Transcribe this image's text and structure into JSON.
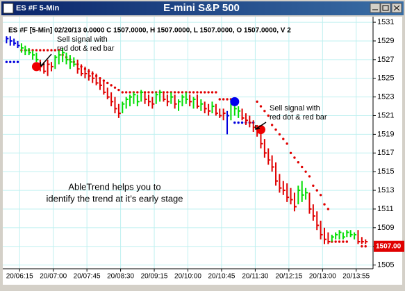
{
  "window": {
    "caption": "ES #F 5-Min",
    "title": "E-mini S&P 500"
  },
  "chart_data": {
    "type": "ohlc",
    "header": "ES #F [5-Min] 02/20/13  0.0000 C 1507.0000, H 1507.0000, L 1507.0000, O 1507.0000, V 2",
    "colors": {
      "up": "#00dd00",
      "down": "#e00000",
      "neutral": "#0000dd"
    },
    "high": [
      1529.5,
      1529.5,
      1529.25,
      1529,
      1528.75,
      1528.5,
      1528.25,
      1528,
      1527.75,
      1527,
      1526.75,
      1527,
      1526.75,
      1527.5,
      1528,
      1528.25,
      1527.75,
      1527.5,
      1527.25,
      1527,
      1526.5,
      1526.25,
      1526,
      1525.75,
      1525.5,
      1525,
      1524.75,
      1524,
      1523.5,
      1523,
      1522.25,
      1522.5,
      1523,
      1523.25,
      1523.5,
      1523.25,
      1523.75,
      1523.5,
      1523.25,
      1523,
      1523.5,
      1523.75,
      1523.5,
      1523.25,
      1523.5,
      1523.25,
      1522.75,
      1523.25,
      1523.5,
      1523.25,
      1523,
      1523.25,
      1522.75,
      1522.5,
      1522.25,
      1522.5,
      1522.25,
      1521.75,
      1521.75,
      1521.5,
      1522.75,
      1522.5,
      1522,
      1521.75,
      1521.25,
      1521,
      1520.5,
      1520,
      1519.5,
      1518.5,
      1517.5,
      1516.75,
      1516,
      1514.75,
      1514,
      1513.75,
      1513.25,
      1512.75,
      1513.5,
      1514,
      1513.25,
      1512.75,
      1511.5,
      1510.75,
      1509.75,
      1509,
      1508.5,
      1508.25,
      1508.5,
      1508.75,
      1508.5,
      1508.75,
      1508.75,
      1508.5,
      1508.75,
      1508,
      1507.75
    ],
    "low": [
      1528.75,
      1528.5,
      1528.5,
      1528.25,
      1527.75,
      1527.5,
      1527.5,
      1527,
      1526.75,
      1525.75,
      1525.5,
      1525.25,
      1525.75,
      1526,
      1526.5,
      1526.75,
      1526.5,
      1526,
      1526.25,
      1525.5,
      1525.25,
      1525,
      1524.75,
      1524.5,
      1524.25,
      1523.75,
      1523.25,
      1522.75,
      1522,
      1521.25,
      1520.75,
      1521.25,
      1521.75,
      1522,
      1522.25,
      1522,
      1522.5,
      1522.25,
      1522,
      1521.75,
      1522.25,
      1522.5,
      1522.5,
      1522,
      1522.25,
      1521.75,
      1521.5,
      1522,
      1522.25,
      1522,
      1521.75,
      1521.75,
      1521.5,
      1521.25,
      1521,
      1521.25,
      1521,
      1520.75,
      1520.5,
      1519,
      1520.5,
      1521,
      1520.75,
      1520.5,
      1520,
      1519.75,
      1519.25,
      1518.75,
      1517.5,
      1516.5,
      1515.75,
      1515,
      1513.5,
      1512.75,
      1512.5,
      1511.75,
      1511.5,
      1510.75,
      1511.5,
      1511.75,
      1512,
      1510.5,
      1509.75,
      1508.75,
      1507.75,
      1507.25,
      1507.25,
      1507.5,
      1507.75,
      1507.75,
      1507.75,
      1508,
      1508,
      1507.75,
      1507.25,
      1507.25,
      1507.25
    ],
    "close": [
      1529.25,
      1529,
      1528.75,
      1528.5,
      1528.25,
      1528,
      1527.75,
      1527.5,
      1527,
      1526.25,
      1525.75,
      1526.5,
      1526.25,
      1527.25,
      1527.5,
      1527.75,
      1527,
      1526.75,
      1526.5,
      1526,
      1525.5,
      1525.5,
      1525.25,
      1525,
      1524.5,
      1524.25,
      1523.5,
      1523,
      1522.5,
      1521.75,
      1521.25,
      1522.25,
      1522.75,
      1523,
      1523.25,
      1522.5,
      1523.5,
      1522.75,
      1522.5,
      1522.25,
      1523.25,
      1523.5,
      1522.75,
      1522.5,
      1523,
      1522.25,
      1522.5,
      1523,
      1522.75,
      1522.5,
      1522.75,
      1522,
      1522.25,
      1521.75,
      1521.5,
      1522,
      1521.25,
      1521,
      1521.25,
      1521,
      1522.25,
      1521.75,
      1521.5,
      1520.75,
      1520.5,
      1520.25,
      1519.75,
      1519.25,
      1518,
      1517,
      1516.25,
      1515.5,
      1514,
      1513.25,
      1513,
      1512.25,
      1512,
      1511.25,
      1513,
      1512.5,
      1512.75,
      1511,
      1510.25,
      1509.25,
      1508.25,
      1507.75,
      1507.5,
      1508,
      1508.25,
      1508.5,
      1508,
      1508.5,
      1508.25,
      1508.25,
      1507.5,
      1507.5,
      1507.5
    ],
    "trend": [
      "neutral",
      "neutral",
      "neutral",
      "neutral",
      "up",
      "up",
      "up",
      "up",
      "up",
      "down",
      "down",
      "down",
      "down",
      "up",
      "up",
      "up",
      "up",
      "up",
      "up",
      "down",
      "down",
      "down",
      "down",
      "down",
      "down",
      "down",
      "down",
      "down",
      "down",
      "down",
      "down",
      "up",
      "up",
      "up",
      "up",
      "up",
      "up",
      "down",
      "down",
      "down",
      "up",
      "up",
      "down",
      "down",
      "up",
      "down",
      "up",
      "up",
      "up",
      "down",
      "up",
      "down",
      "up",
      "down",
      "down",
      "up",
      "down",
      "down",
      "down",
      "neutral",
      "up",
      "up",
      "up",
      "down",
      "down",
      "down",
      "down",
      "down",
      "down",
      "down",
      "down",
      "down",
      "down",
      "down",
      "down",
      "down",
      "down",
      "down",
      "up",
      "up",
      "up",
      "down",
      "down",
      "down",
      "down",
      "down",
      "down",
      "up",
      "up",
      "up",
      "up",
      "up",
      "up",
      "up",
      "down",
      "down",
      "down"
    ],
    "red_stop": [
      null,
      null,
      null,
      null,
      1528,
      1528,
      1528,
      1528,
      1528,
      1528,
      1528,
      1528,
      1528,
      1528,
      1528,
      1527.5,
      1527.25,
      1527,
      1526.75,
      1526.5,
      1526.25,
      1526,
      1525.75,
      1525.5,
      1525.25,
      1525,
      1524.75,
      1524.5,
      1524.25,
      1524,
      1523.75,
      1523.5,
      1523.5,
      1523.5,
      1523.5,
      1523.5,
      1523.5,
      1523.5,
      1523.5,
      1523.5,
      1523.5,
      1523.5,
      1523.5,
      1523.5,
      1523.5,
      1523.5,
      1523.5,
      1523.5,
      1523.5,
      1523.5,
      1523.5,
      1523.5,
      1523.5,
      1523.5,
      1523.5,
      1523.5,
      1523.5,
      1522.75,
      1522.75,
      1522.75,
      1522.75,
      null,
      null,
      null,
      null,
      null,
      null,
      1522.5,
      1522,
      1521.5,
      1521,
      1520,
      1519.5,
      1519,
      1518.5,
      1518,
      1517,
      1516.5,
      1516,
      1515.5,
      1515,
      1514.5,
      1513.5,
      1513,
      1512.5,
      1511.5,
      1511,
      1507.5,
      1507.5,
      1507.5,
      1507.5,
      1507.5,
      null,
      null,
      null,
      1507,
      1507
    ],
    "blue_stop": [
      1526.75,
      1526.75,
      1526.75,
      1526.75,
      null,
      null,
      null,
      null,
      null,
      null,
      null,
      null,
      null,
      null,
      null,
      null,
      null,
      null,
      null,
      null,
      null,
      null,
      null,
      null,
      null,
      null,
      null,
      null,
      null,
      null,
      null,
      null,
      null,
      null,
      null,
      null,
      null,
      null,
      null,
      null,
      null,
      null,
      null,
      null,
      null,
      null,
      null,
      null,
      null,
      null,
      null,
      null,
      null,
      null,
      null,
      null,
      null,
      null,
      null,
      null,
      null,
      1520.25,
      1520.25,
      1520.25,
      1520.25,
      1520.25,
      1520.25,
      null,
      null,
      null,
      null,
      null,
      null,
      null,
      null,
      null,
      null,
      null,
      null,
      null,
      null,
      null,
      null,
      null,
      null,
      null,
      null,
      null,
      null,
      null,
      null,
      null,
      null,
      null,
      null,
      null,
      null
    ],
    "signals": [
      {
        "index": 8,
        "value": 1526.25,
        "color": "#ee0000"
      },
      {
        "index": 61,
        "value": 1522.5,
        "color": "#0000ee"
      },
      {
        "index": 68,
        "value": 1519.5,
        "color": "#ee0000"
      }
    ],
    "ylim": [
      1504.6,
      1531.6
    ],
    "yticks": [
      1505,
      1507,
      1509,
      1511,
      1513,
      1515,
      1517,
      1519,
      1521,
      1523,
      1525,
      1527,
      1529,
      1531
    ],
    "xlim": [
      -1,
      98
    ],
    "xticks": [
      {
        "value": 3.5,
        "label": "20/06:15"
      },
      {
        "value": 12.5,
        "label": "20/07:00"
      },
      {
        "value": 21.5,
        "label": "20/07:45"
      },
      {
        "value": 30.5,
        "label": "20/08:30"
      },
      {
        "value": 39.5,
        "label": "20/09:15"
      },
      {
        "value": 48.5,
        "label": "20/10:00"
      },
      {
        "value": 57.5,
        "label": "20/10:45"
      },
      {
        "value": 66.5,
        "label": "20/11:30"
      },
      {
        "value": 75.5,
        "label": "20/12:15"
      },
      {
        "value": 84.5,
        "label": "20/13:00"
      },
      {
        "value": 93.5,
        "label": "20/13:55"
      }
    ],
    "last_price": {
      "value": 1507,
      "label": "1507.00"
    },
    "grid": true,
    "annotations": [
      {
        "lines": [
          "Sell signal with",
          "red dot & red bar"
        ]
      },
      {
        "lines": [
          "Sell signal with",
          "red dot & red bar"
        ]
      },
      {
        "lines": [
          "AbleTrend helps you to",
          "identify the trend at it’s early stage"
        ]
      }
    ]
  }
}
